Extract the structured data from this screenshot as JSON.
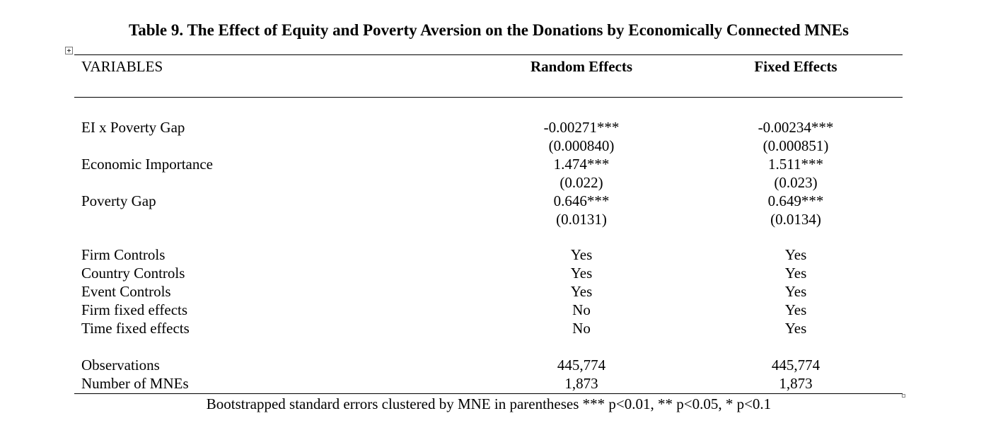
{
  "title": "Table 9. The Effect of Equity and Poverty Aversion on the Donations by Economically Connected MNEs",
  "header": {
    "variables": "VARIABLES",
    "col1": "Random Effects",
    "col2": "Fixed Effects"
  },
  "coefficients": [
    {
      "label": "EI x Poverty Gap",
      "re": "-0.00271***",
      "re_se": "(0.000840)",
      "fe": "-0.00234***",
      "fe_se": "(0.000851)"
    },
    {
      "label": "Economic Importance",
      "re": "1.474***",
      "re_se": "(0.022)",
      "fe": "1.511***",
      "fe_se": "(0.023)"
    },
    {
      "label": "Poverty Gap",
      "re": "0.646***",
      "re_se": "(0.0131)",
      "fe": "0.649***",
      "fe_se": "(0.0134)"
    }
  ],
  "controls": [
    {
      "label": "Firm Controls",
      "re": "Yes",
      "fe": "Yes"
    },
    {
      "label": "Country Controls",
      "re": "Yes",
      "fe": "Yes"
    },
    {
      "label": "Event Controls",
      "re": "Yes",
      "fe": "Yes"
    },
    {
      "label": "Firm fixed effects",
      "re": "No",
      "fe": "Yes"
    },
    {
      "label": "Time fixed effects",
      "re": "No",
      "fe": "Yes"
    }
  ],
  "stats": [
    {
      "label": "Observations",
      "re": "445,774",
      "fe": "445,774"
    },
    {
      "label": "Number of MNEs",
      "re": "1,873",
      "fe": "1,873"
    }
  ],
  "note": "Bootstrapped standard errors clustered by MNE in parentheses *** p<0.01, ** p<0.05, * p<0.1"
}
